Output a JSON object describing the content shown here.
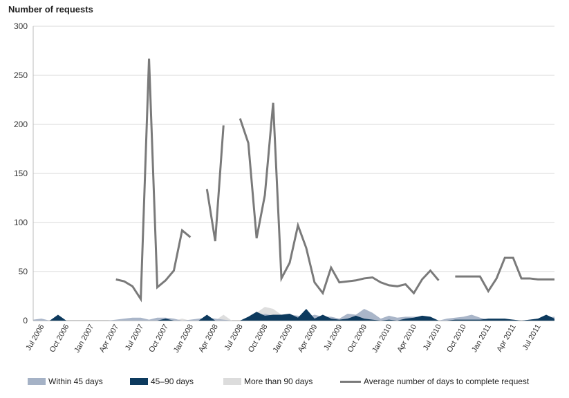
{
  "chart_data": {
    "type": "line",
    "ylabel": "Number of requests",
    "ylim": [
      0,
      300
    ],
    "yticks": [
      0,
      50,
      100,
      150,
      200,
      250,
      300
    ],
    "grid": true,
    "legend_position": "bottom",
    "x": [
      "2006-06",
      "2006-07",
      "2006-08",
      "2006-09",
      "2006-10",
      "2006-11",
      "2006-12",
      "2007-01",
      "2007-02",
      "2007-03",
      "2007-04",
      "2007-05",
      "2007-06",
      "2007-07",
      "2007-08",
      "2007-09",
      "2007-10",
      "2007-11",
      "2007-12",
      "2008-01",
      "2008-02",
      "2008-03",
      "2008-04",
      "2008-05",
      "2008-06",
      "2008-07",
      "2008-08",
      "2008-09",
      "2008-10",
      "2008-11",
      "2008-12",
      "2009-01",
      "2009-02",
      "2009-03",
      "2009-04",
      "2009-05",
      "2009-06",
      "2009-07",
      "2009-08",
      "2009-09",
      "2009-10",
      "2009-11",
      "2009-12",
      "2010-01",
      "2010-02",
      "2010-03",
      "2010-04",
      "2010-05",
      "2010-06",
      "2010-07",
      "2010-08",
      "2010-09",
      "2010-10",
      "2010-11",
      "2010-12",
      "2011-01",
      "2011-02",
      "2011-03",
      "2011-04",
      "2011-05",
      "2011-06",
      "2011-07",
      "2011-08",
      "2011-09"
    ],
    "xtick_labels": [
      {
        "x": "2006-07",
        "label": "Jul 2006"
      },
      {
        "x": "2006-10",
        "label": "Oct 2006"
      },
      {
        "x": "2007-01",
        "label": "Jan 2007"
      },
      {
        "x": "2007-04",
        "label": "Apr 2007"
      },
      {
        "x": "2007-07",
        "label": "Jul 2007"
      },
      {
        "x": "2007-10",
        "label": "Oct 2007"
      },
      {
        "x": "2008-01",
        "label": "Jan 2008"
      },
      {
        "x": "2008-04",
        "label": "Apr 2008"
      },
      {
        "x": "2008-07",
        "label": "Jul 2008"
      },
      {
        "x": "2008-10",
        "label": "Oct 2008"
      },
      {
        "x": "2009-01",
        "label": "Jan 2009"
      },
      {
        "x": "2009-04",
        "label": "Apr 2009"
      },
      {
        "x": "2009-07",
        "label": "Jul 2009"
      },
      {
        "x": "2009-10",
        "label": "Oct 2009"
      },
      {
        "x": "2010-01",
        "label": "Jan 2010"
      },
      {
        "x": "2010-04",
        "label": "Apr 2010"
      },
      {
        "x": "2010-07",
        "label": "Jul 2010"
      },
      {
        "x": "2010-10",
        "label": "Oct 2010"
      },
      {
        "x": "2011-01",
        "label": "Jan 2011"
      },
      {
        "x": "2011-04",
        "label": "Apr 2011"
      },
      {
        "x": "2011-07",
        "label": "Jul 2011"
      }
    ],
    "series": [
      {
        "name": "Within 45 days",
        "kind": "area",
        "color": "#a5b2c6",
        "values": [
          1,
          2,
          0,
          3,
          0,
          0,
          0,
          0,
          0,
          0,
          1,
          2,
          3,
          3,
          1,
          3,
          3,
          2,
          0,
          1,
          2,
          3,
          2,
          1,
          0,
          0,
          1,
          4,
          7,
          5,
          4,
          6,
          5,
          3,
          6,
          4,
          4,
          2,
          7,
          6,
          12,
          8,
          2,
          5,
          3,
          4,
          4,
          4,
          3,
          0,
          2,
          3,
          4,
          6,
          3,
          1,
          1,
          1,
          1,
          0,
          1,
          2,
          3,
          4
        ]
      },
      {
        "name": "45–90 days",
        "kind": "area",
        "color": "#0d3a5e",
        "values": [
          0,
          0,
          0,
          6,
          0,
          0,
          0,
          0,
          0,
          0,
          0,
          0,
          0,
          0,
          0,
          0,
          2,
          0,
          0,
          0,
          0,
          6,
          0,
          0,
          0,
          0,
          4,
          9,
          5,
          6,
          6,
          7,
          3,
          12,
          2,
          6,
          2,
          1,
          2,
          5,
          2,
          1,
          0,
          1,
          0,
          2,
          3,
          5,
          4,
          0,
          0,
          1,
          1,
          1,
          1,
          2,
          2,
          2,
          1,
          0,
          1,
          2,
          6,
          2
        ]
      },
      {
        "name": "More than 90 days",
        "kind": "area",
        "color": "#dcdcdc",
        "values": [
          0,
          0,
          0,
          0,
          0,
          0,
          0,
          0,
          0,
          0,
          0,
          0,
          0,
          0,
          0,
          0,
          0,
          0,
          2,
          0,
          0,
          0,
          0,
          6,
          0,
          0,
          3,
          8,
          14,
          12,
          6,
          5,
          2,
          2,
          2,
          2,
          1,
          0,
          1,
          1,
          1,
          1,
          0,
          0,
          0,
          1,
          1,
          1,
          1,
          0,
          0,
          0,
          0,
          1,
          0,
          0,
          0,
          1,
          0,
          0,
          0,
          0,
          1,
          0
        ]
      },
      {
        "name": "Average number of days to complete request",
        "kind": "line",
        "color": "#7a7a7a",
        "values": [
          null,
          null,
          null,
          null,
          null,
          null,
          null,
          null,
          null,
          null,
          42,
          40,
          35,
          22,
          267,
          34,
          41,
          51,
          92,
          85,
          null,
          134,
          81,
          199,
          null,
          206,
          181,
          84,
          128,
          222,
          43,
          59,
          97,
          74,
          39,
          28,
          54,
          39,
          40,
          41,
          43,
          44,
          39,
          36,
          35,
          37,
          28,
          42,
          51,
          41,
          null,
          45,
          45,
          45,
          45,
          30,
          43,
          64,
          64,
          43,
          43,
          42,
          42,
          42
        ]
      }
    ]
  }
}
